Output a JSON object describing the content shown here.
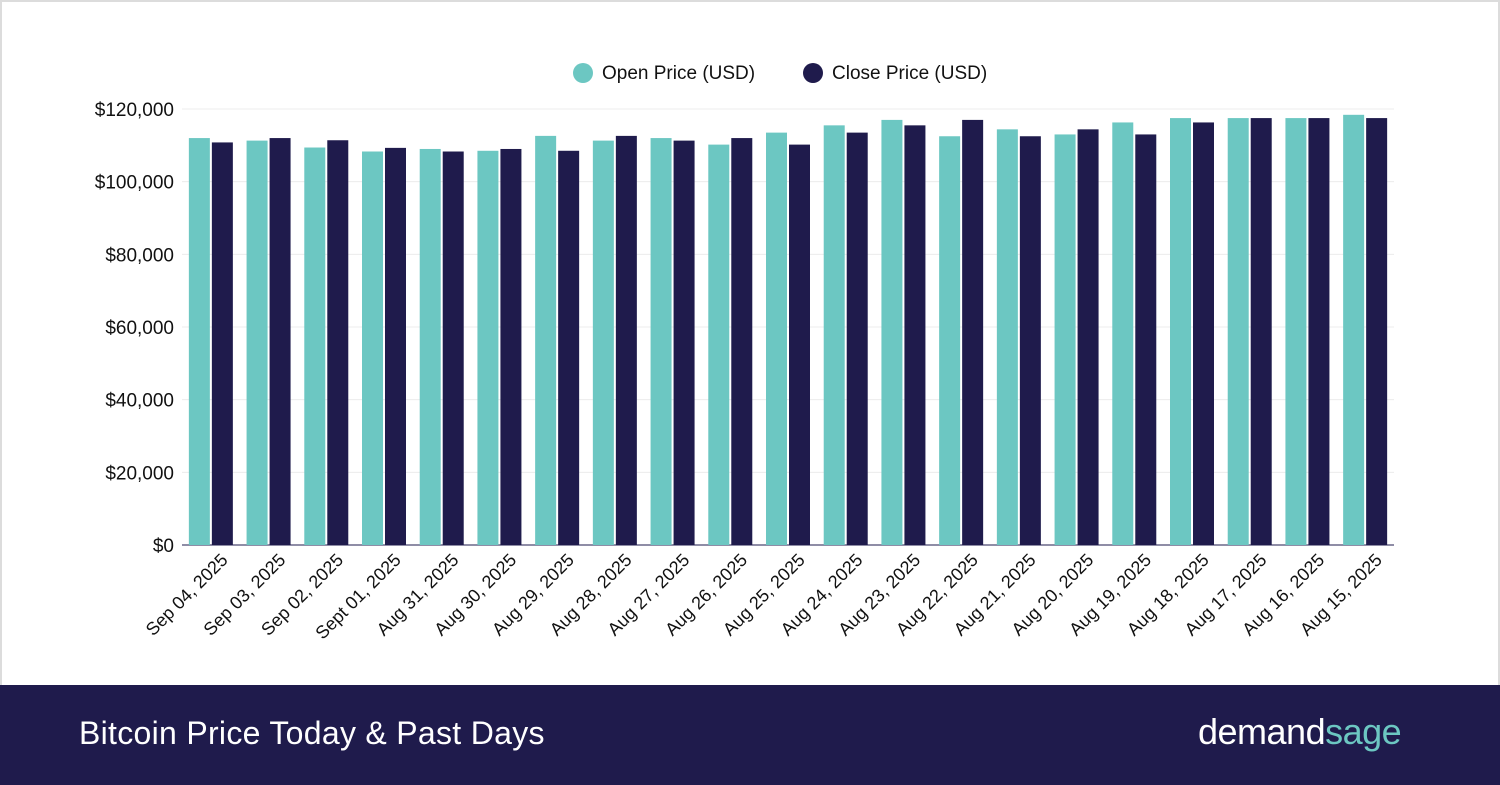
{
  "footer": {
    "title": "Bitcoin Price Today & Past Days",
    "brand_part1": "demand",
    "brand_part2": "sage"
  },
  "colors": {
    "open": "#6cc7c2",
    "close": "#1f1b4c",
    "footer_bg": "#1f1b4c"
  },
  "chart_data": {
    "type": "bar",
    "title": "",
    "xlabel": "",
    "ylabel": "",
    "ylim": [
      0,
      120000
    ],
    "yticks": [
      0,
      20000,
      40000,
      60000,
      80000,
      100000,
      120000
    ],
    "ytick_labels": [
      "$0",
      "$20,000",
      "$40,000",
      "$60,000",
      "$80,000",
      "$100,000",
      "$120,000"
    ],
    "grid": true,
    "legend_position": "top-center",
    "categories": [
      "Sep 04, 2025",
      "Sep 03, 2025",
      "Sep 02, 2025",
      "Sept 01, 2025",
      "Aug 31, 2025",
      "Aug 30, 2025",
      "Aug 29, 2025",
      "Aug 28, 2025",
      "Aug 27, 2025",
      "Aug 26, 2025",
      "Aug 25, 2025",
      "Aug 24, 2025",
      "Aug 23, 2025",
      "Aug 22, 2025",
      "Aug 21, 2025",
      "Aug 20, 2025",
      "Aug 19, 2025",
      "Aug 18, 2025",
      "Aug 17, 2025",
      "Aug 16, 2025",
      "Aug 15, 2025"
    ],
    "series": [
      {
        "name": "Open Price (USD)",
        "color": "#6cc7c2",
        "values": [
          112000,
          111300,
          109400,
          108300,
          109000,
          108500,
          112600,
          111300,
          112000,
          110200,
          113500,
          115500,
          117000,
          112500,
          114400,
          113000,
          116300,
          117500,
          117500,
          117500,
          118400
        ]
      },
      {
        "name": "Close Price (USD)",
        "color": "#1f1b4c",
        "values": [
          110800,
          112000,
          111400,
          109300,
          108300,
          109000,
          108500,
          112600,
          111300,
          112000,
          110200,
          113500,
          115500,
          117000,
          112500,
          114400,
          113000,
          116300,
          117500,
          117500,
          117500
        ]
      }
    ]
  }
}
